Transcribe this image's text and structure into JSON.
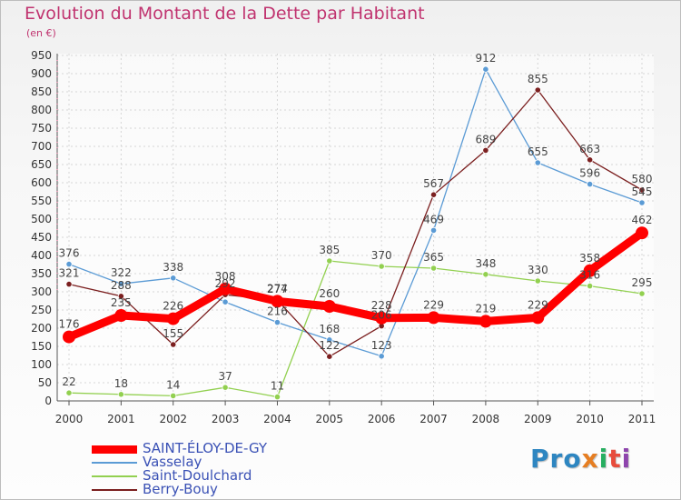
{
  "title": "Evolution du Montant de la Dette par Habitant",
  "unit": "(en €)",
  "logo": {
    "parts": [
      "Pro",
      "x",
      "i",
      "t",
      "i"
    ],
    "colors": [
      "#2e86c1",
      "#e67e22",
      "#27ae60",
      "#e74c3c",
      "#8e44ad"
    ]
  },
  "chart_data": {
    "type": "line",
    "title": "Evolution du Montant de la Dette par Habitant",
    "xlabel": "",
    "ylabel": "(en €)",
    "ylim": [
      0,
      950
    ],
    "yticks": [
      0,
      50,
      100,
      150,
      200,
      250,
      300,
      350,
      400,
      450,
      500,
      550,
      600,
      650,
      700,
      750,
      800,
      850,
      900,
      950
    ],
    "x": [
      "2000",
      "2001",
      "2002",
      "2003",
      "2004",
      "2005",
      "2006",
      "2007",
      "2008",
      "2009",
      "2010",
      "2011"
    ],
    "grid": true,
    "legend_position": "bottom-left",
    "series": [
      {
        "name": "SAINT-ÉLOY-DE-GY",
        "color": "#ff0000",
        "values": [
          176,
          235,
          226,
          308,
          274,
          260,
          228,
          229,
          219,
          229,
          358,
          462
        ]
      },
      {
        "name": "Vasselay",
        "color": "#5b9bd5",
        "values": [
          376,
          322,
          338,
          272,
          216,
          168,
          123,
          469,
          912,
          655,
          596,
          545
        ]
      },
      {
        "name": "Saint-Doulchard",
        "color": "#92d050",
        "values": [
          22,
          18,
          14,
          37,
          11,
          385,
          370,
          365,
          348,
          330,
          316,
          295
        ]
      },
      {
        "name": "Berry-Bouy",
        "color": "#7b1f1f",
        "values": [
          321,
          288,
          155,
          292,
          277,
          122,
          206,
          567,
          689,
          855,
          663,
          580
        ]
      }
    ],
    "data_labels": [
      {
        "series": 0,
        "labels": [
          "176",
          "235",
          "226",
          "308",
          "274",
          "260",
          "228",
          "229",
          "219",
          "229",
          "358",
          "462"
        ]
      },
      {
        "series": 1,
        "labels": [
          "376",
          "322",
          "338",
          "",
          "216",
          "168",
          "123",
          "469",
          "912",
          "655",
          "596",
          "545"
        ]
      },
      {
        "series": 2,
        "labels": [
          "22",
          "18",
          "14",
          "37",
          "11",
          "385",
          "370",
          "365",
          "348",
          "330",
          "316",
          "295"
        ]
      },
      {
        "series": 3,
        "labels": [
          "321",
          "288",
          "155",
          "292",
          "277",
          "122",
          "206",
          "567",
          "689",
          "855",
          "663",
          "580"
        ]
      }
    ]
  }
}
